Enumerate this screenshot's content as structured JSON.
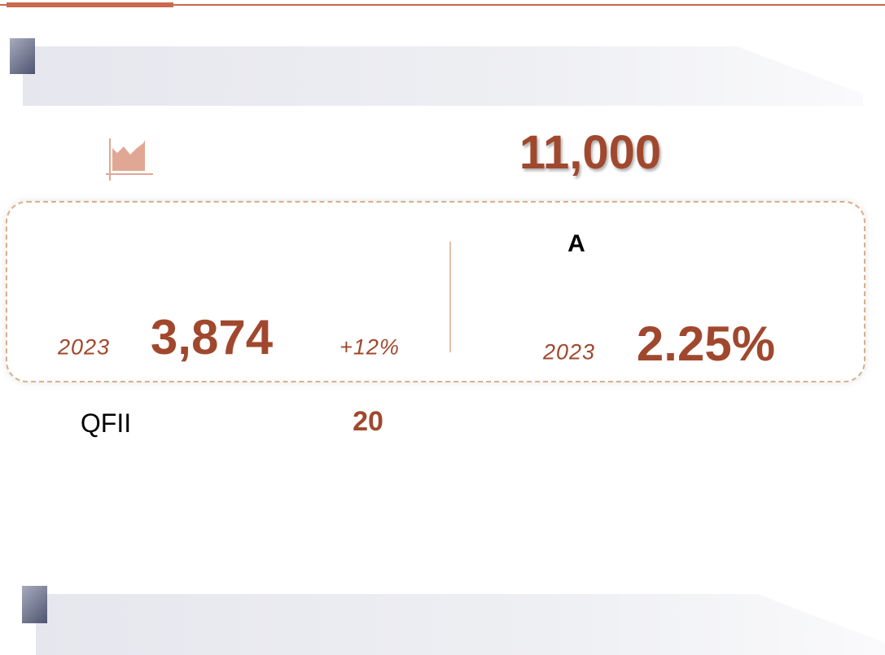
{
  "headline": {
    "value": "11,000"
  },
  "panel": {
    "left": {
      "year": "2023",
      "value": "3,874",
      "change": "+12%"
    },
    "right": {
      "title": "A",
      "year": "2023",
      "value": "2.25%"
    }
  },
  "footer_row": {
    "label": "QFII",
    "value": "20"
  }
}
